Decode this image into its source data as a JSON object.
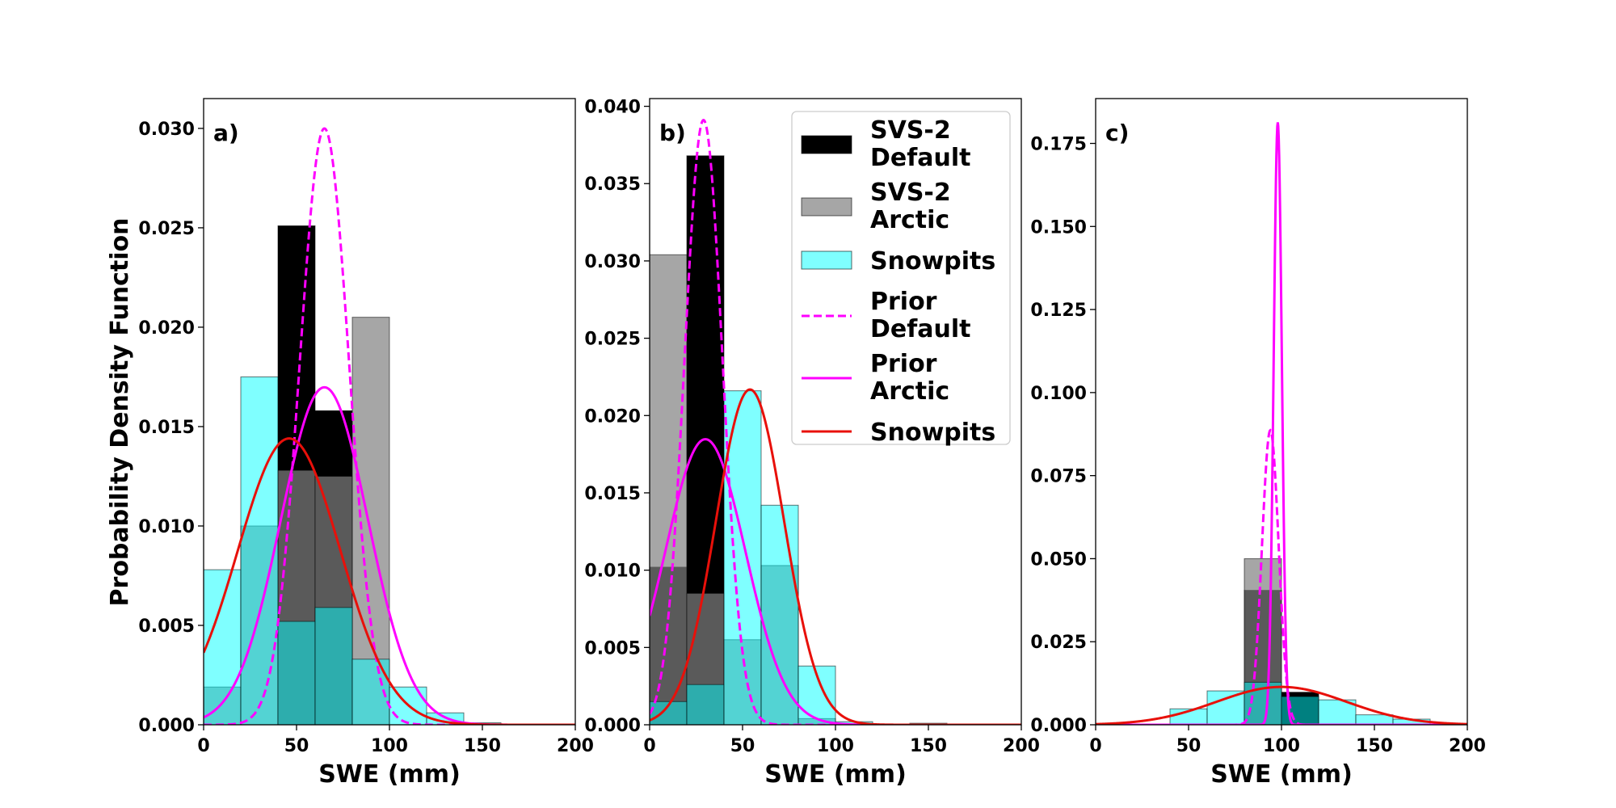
{
  "figure": {
    "ylabel": "Probability Density Function",
    "xlabel": "SWE (mm)"
  },
  "legend": {
    "entries": [
      {
        "label_line1": "SVS-2",
        "label_line2": "Default",
        "kind": "patch",
        "color": "#000000",
        "alpha": 1.0
      },
      {
        "label_line1": "SVS-2",
        "label_line2": "Arctic",
        "kind": "patch",
        "color": "#808080",
        "alpha": 0.7
      },
      {
        "label_line1": "Snowpits",
        "label_line2": "",
        "kind": "patch",
        "color": "#00ffff",
        "alpha": 0.5
      },
      {
        "label_line1": "Prior",
        "label_line2": "Default",
        "kind": "line",
        "color": "#ff00ff",
        "dash": "dashed"
      },
      {
        "label_line1": "Prior",
        "label_line2": "Arctic",
        "kind": "line",
        "color": "#ff00ff",
        "dash": "solid"
      },
      {
        "label_line1": "Snowpits",
        "label_line2": "",
        "kind": "line",
        "color": "#e8100a",
        "dash": "solid"
      }
    ]
  },
  "chart_data": [
    {
      "type": "bar",
      "panel_label": "a)",
      "xlabel": "SWE (mm)",
      "ylabel": "Probability Density Function",
      "xlim": [
        0,
        200
      ],
      "ylim": [
        0,
        0.0315
      ],
      "xticks": [
        0,
        50,
        100,
        150,
        200
      ],
      "yticks": [
        0.0,
        0.005,
        0.01,
        0.015,
        0.02,
        0.025,
        0.03
      ],
      "ytick_labels": [
        "0.000",
        "0.005",
        "0.010",
        "0.015",
        "0.020",
        "0.025",
        "0.030"
      ],
      "bin_width": 20,
      "histograms": [
        {
          "name": "SVS-2 Default",
          "color": "#000000",
          "alpha": 1.0,
          "bins": [
            [
              40,
              0.0251
            ],
            [
              60,
              0.0158
            ]
          ]
        },
        {
          "name": "SVS-2 Arctic",
          "color": "#808080",
          "alpha": 0.7,
          "bins": [
            [
              0,
              0.0019
            ],
            [
              20,
              0.01
            ],
            [
              40,
              0.0128
            ],
            [
              60,
              0.0125
            ],
            [
              80,
              0.0205
            ]
          ]
        },
        {
          "name": "Snowpits",
          "color": "#00ffff",
          "alpha": 0.5,
          "bins": [
            [
              0,
              0.0078
            ],
            [
              20,
              0.0175
            ],
            [
              40,
              0.0052
            ],
            [
              60,
              0.0059
            ],
            [
              80,
              0.0033
            ],
            [
              100,
              0.0019
            ],
            [
              120,
              0.0006
            ],
            [
              140,
              0.0001
            ]
          ]
        }
      ],
      "curves": [
        {
          "name": "Prior Default",
          "color": "#ff00ff",
          "dash": "dashed",
          "mu": 65,
          "sigma": 13.3,
          "scale": 1.0
        },
        {
          "name": "Prior Arctic",
          "color": "#ff00ff",
          "dash": "solid",
          "mu": 65,
          "sigma": 23.5,
          "scale": 1.0
        },
        {
          "name": "Snowpits",
          "color": "#e8100a",
          "dash": "solid",
          "mu": 46,
          "sigma": 27.7,
          "scale": 1.0
        }
      ]
    },
    {
      "type": "bar",
      "panel_label": "b)",
      "xlabel": "SWE (mm)",
      "ylabel": "",
      "xlim": [
        0,
        200
      ],
      "ylim": [
        0,
        0.0405
      ],
      "xticks": [
        0,
        50,
        100,
        150,
        200
      ],
      "yticks": [
        0.0,
        0.005,
        0.01,
        0.015,
        0.02,
        0.025,
        0.03,
        0.035,
        0.04
      ],
      "ytick_labels": [
        "0.000",
        "0.005",
        "0.010",
        "0.015",
        "0.020",
        "0.025",
        "0.030",
        "0.035",
        "0.040"
      ],
      "bin_width": 20,
      "histograms": [
        {
          "name": "SVS-2 Default",
          "color": "#000000",
          "alpha": 1.0,
          "bins": [
            [
              0,
              0.0102
            ],
            [
              20,
              0.0368
            ]
          ]
        },
        {
          "name": "SVS-2 Arctic",
          "color": "#808080",
          "alpha": 0.7,
          "bins": [
            [
              0,
              0.0304
            ],
            [
              20,
              0.0085
            ],
            [
              40,
              0.0055
            ],
            [
              60,
              0.0103
            ],
            [
              80,
              0.0004
            ]
          ]
        },
        {
          "name": "Snowpits",
          "color": "#00ffff",
          "alpha": 0.5,
          "bins": [
            [
              0,
              0.0015
            ],
            [
              20,
              0.0026
            ],
            [
              40,
              0.0216
            ],
            [
              60,
              0.0142
            ],
            [
              80,
              0.0038
            ],
            [
              100,
              0.0002
            ],
            [
              140,
              0.0001
            ]
          ]
        }
      ],
      "curves": [
        {
          "name": "Prior Default",
          "color": "#ff00ff",
          "dash": "dashed",
          "mu": 29,
          "sigma": 10.2,
          "scale": 1.0
        },
        {
          "name": "Prior Arctic",
          "color": "#ff00ff",
          "dash": "solid",
          "mu": 30,
          "sigma": 21.6,
          "scale": 1.0
        },
        {
          "name": "Snowpits",
          "color": "#e8100a",
          "dash": "solid",
          "mu": 54,
          "sigma": 18.4,
          "scale": 1.0
        }
      ]
    },
    {
      "type": "bar",
      "panel_label": "c)",
      "xlabel": "SWE (mm)",
      "ylabel": "",
      "xlim": [
        0,
        200
      ],
      "ylim": [
        0,
        0.1885
      ],
      "xticks": [
        0,
        50,
        100,
        150,
        200
      ],
      "yticks": [
        0.0,
        0.025,
        0.05,
        0.075,
        0.1,
        0.125,
        0.15,
        0.175
      ],
      "ytick_labels": [
        "0.000",
        "0.025",
        "0.050",
        "0.075",
        "0.100",
        "0.125",
        "0.150",
        "0.175"
      ],
      "bin_width": 20,
      "histograms": [
        {
          "name": "SVS-2 Default",
          "color": "#000000",
          "alpha": 1.0,
          "bins": [
            [
              80,
              0.0405
            ],
            [
              100,
              0.0098
            ]
          ]
        },
        {
          "name": "SVS-2 Arctic",
          "color": "#808080",
          "alpha": 0.7,
          "bins": [
            [
              80,
              0.05
            ]
          ]
        },
        {
          "name": "Snowpits",
          "color": "#00ffff",
          "alpha": 0.5,
          "bins": [
            [
              40,
              0.0048
            ],
            [
              60,
              0.0102
            ],
            [
              80,
              0.0128
            ],
            [
              100,
              0.0085
            ],
            [
              120,
              0.0075
            ],
            [
              140,
              0.003
            ],
            [
              160,
              0.0017
            ]
          ]
        }
      ],
      "curves": [
        {
          "name": "Prior Default",
          "color": "#ff00ff",
          "dash": "dashed",
          "mu": 94,
          "sigma": 4.5,
          "scale": 1.0
        },
        {
          "name": "Prior Arctic",
          "color": "#ff00ff",
          "dash": "solid",
          "mu": 98,
          "sigma": 2.2,
          "scale": 1.0
        },
        {
          "name": "Snowpits",
          "color": "#e8100a",
          "dash": "solid",
          "mu": 100,
          "sigma": 35,
          "scale": 1.0
        }
      ]
    }
  ]
}
